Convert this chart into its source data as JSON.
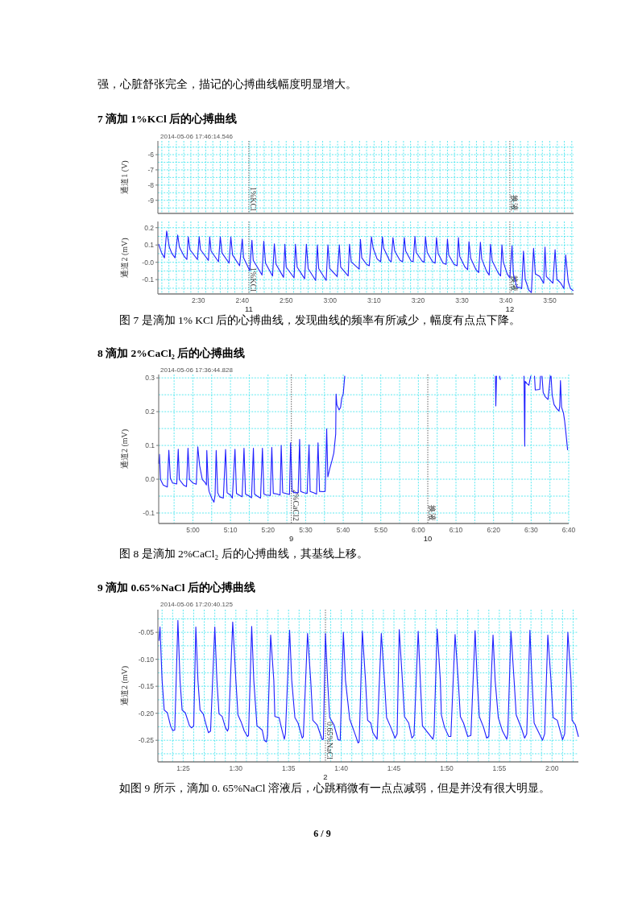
{
  "chart_data": [
    {
      "type": "line",
      "title": "7  滴加 1%KCl 后的心搏曲线",
      "subtitle": "2014-05-06 17:46:14.546",
      "ylabel": "通道1 (V)",
      "annotations": [
        "强，心脏舒张完全，描记的心搏曲线幅度明显增大。"
      ],
      "tick_labels": "y",
      "grid": true,
      "xlim": [
        140.8,
        235.4
      ],
      "ylim": [
        -9.86,
        -5.1
      ],
      "xticks": [
        {
          "value": 141.7,
          "label": null
        },
        {
          "value": 143.3,
          "label": null
        },
        {
          "value": 145,
          "label": null
        },
        {
          "value": 146.7,
          "label": null
        },
        {
          "value": 148.3,
          "label": null
        },
        {
          "value": 150,
          "label": null
        },
        {
          "value": 151.7,
          "label": null
        },
        {
          "value": 153.3,
          "label": null
        },
        {
          "value": 155,
          "label": null
        },
        {
          "value": 156.7,
          "label": null
        },
        {
          "value": 158.3,
          "label": null
        },
        {
          "value": 160,
          "label": null
        },
        {
          "value": 161.7,
          "label": null
        },
        {
          "value": 163.3,
          "label": null
        },
        {
          "value": 165,
          "label": null
        },
        {
          "value": 166.7,
          "label": null
        },
        {
          "value": 168.3,
          "label": null
        },
        {
          "value": 170,
          "label": null
        },
        {
          "value": 171.7,
          "label": null
        },
        {
          "value": 173.3,
          "label": null
        },
        {
          "value": 175,
          "label": null
        },
        {
          "value": 176.7,
          "label": null
        },
        {
          "value": 178.3,
          "label": null
        },
        {
          "value": 180,
          "label": null
        },
        {
          "value": 181.7,
          "label": null
        },
        {
          "value": 183.3,
          "label": null
        },
        {
          "value": 185,
          "label": null
        },
        {
          "value": 186.7,
          "label": null
        },
        {
          "value": 188.3,
          "label": null
        },
        {
          "value": 190,
          "label": null
        },
        {
          "value": 191.7,
          "label": null
        },
        {
          "value": 193.3,
          "label": null
        },
        {
          "value": 195,
          "label": null
        },
        {
          "value": 196.7,
          "label": null
        },
        {
          "value": 198.3,
          "label": null
        },
        {
          "value": 200,
          "label": null
        },
        {
          "value": 201.7,
          "label": null
        },
        {
          "value": 203.3,
          "label": null
        },
        {
          "value": 205,
          "label": null
        },
        {
          "value": 206.7,
          "label": null
        },
        {
          "value": 208.3,
          "label": null
        },
        {
          "value": 210,
          "label": null
        },
        {
          "value": 211.7,
          "label": null
        },
        {
          "value": 213.3,
          "label": null
        },
        {
          "value": 215,
          "label": null
        },
        {
          "value": 216.7,
          "label": null
        },
        {
          "value": 218.3,
          "label": null
        },
        {
          "value": 220,
          "label": null
        },
        {
          "value": 221.7,
          "label": null
        },
        {
          "value": 223.3,
          "label": null
        },
        {
          "value": 225,
          "label": null
        },
        {
          "value": 226.7,
          "label": null
        },
        {
          "value": 228.3,
          "label": null
        },
        {
          "value": 230,
          "label": null
        },
        {
          "value": 231.7,
          "label": null
        },
        {
          "value": 233.3,
          "label": null
        },
        {
          "value": 235,
          "label": null
        }
      ],
      "yticks": [
        {
          "value": -9.5,
          "label": null
        },
        -9,
        {
          "value": -8.5,
          "label": null
        },
        -8,
        {
          "value": -7.5,
          "label": null
        },
        -7,
        {
          "value": -6.5,
          "label": null
        },
        -6,
        {
          "value": -5.5,
          "label": null
        }
      ],
      "ref_lines": [
        {
          "axis": "x",
          "value": 161.5,
          "label": "1%KCl",
          "line_style": "dotted",
          "color": "#666666"
        },
        {
          "axis": "x",
          "value": 220.9,
          "label": "换液",
          "line_style": "dotted",
          "color": "#666666"
        }
      ]
    },
    {
      "type": "line",
      "ylabel": "通道2 (mV)",
      "annotations": [
        "11",
        "12",
        "图 7 是滴加 1% KCl 后的心搏曲线，发现曲线的频率有所减少，幅度有点点下降。"
      ],
      "grid": true,
      "xlim": [
        140.8,
        235.4
      ],
      "ylim": [
        -0.183,
        0.236
      ],
      "xticks": [
        {
          "value": 141.7,
          "label": null
        },
        {
          "value": 143.3,
          "label": null
        },
        {
          "value": 145,
          "label": null
        },
        {
          "value": 146.7,
          "label": null
        },
        {
          "value": 148.3,
          "label": null
        },
        {
          "value": 150,
          "label": "2:30"
        },
        {
          "value": 151.7,
          "label": null
        },
        {
          "value": 153.3,
          "label": null
        },
        {
          "value": 155,
          "label": null
        },
        {
          "value": 156.7,
          "label": null
        },
        {
          "value": 158.3,
          "label": null
        },
        {
          "value": 160,
          "label": "2:40"
        },
        {
          "value": 161.7,
          "label": null
        },
        {
          "value": 163.3,
          "label": null
        },
        {
          "value": 165,
          "label": null
        },
        {
          "value": 166.7,
          "label": null
        },
        {
          "value": 168.3,
          "label": null
        },
        {
          "value": 170,
          "label": "2:50"
        },
        {
          "value": 171.7,
          "label": null
        },
        {
          "value": 173.3,
          "label": null
        },
        {
          "value": 175,
          "label": null
        },
        {
          "value": 176.7,
          "label": null
        },
        {
          "value": 178.3,
          "label": null
        },
        {
          "value": 180,
          "label": "3:00"
        },
        {
          "value": 181.7,
          "label": null
        },
        {
          "value": 183.3,
          "label": null
        },
        {
          "value": 185,
          "label": null
        },
        {
          "value": 186.7,
          "label": null
        },
        {
          "value": 188.3,
          "label": null
        },
        {
          "value": 190,
          "label": "3:10"
        },
        {
          "value": 191.7,
          "label": null
        },
        {
          "value": 193.3,
          "label": null
        },
        {
          "value": 195,
          "label": null
        },
        {
          "value": 196.7,
          "label": null
        },
        {
          "value": 198.3,
          "label": null
        },
        {
          "value": 200,
          "label": "3:20"
        },
        {
          "value": 201.7,
          "label": null
        },
        {
          "value": 203.3,
          "label": null
        },
        {
          "value": 205,
          "label": null
        },
        {
          "value": 206.7,
          "label": null
        },
        {
          "value": 208.3,
          "label": null
        },
        {
          "value": 210,
          "label": "3:30"
        },
        {
          "value": 211.7,
          "label": null
        },
        {
          "value": 213.3,
          "label": null
        },
        {
          "value": 215,
          "label": null
        },
        {
          "value": 216.7,
          "label": null
        },
        {
          "value": 218.3,
          "label": null
        },
        {
          "value": 220,
          "label": "3:40"
        },
        {
          "value": 221.7,
          "label": null
        },
        {
          "value": 223.3,
          "label": null
        },
        {
          "value": 225,
          "label": null
        },
        {
          "value": 226.7,
          "label": null
        },
        {
          "value": 228.3,
          "label": null
        },
        {
          "value": 230,
          "label": "3:50"
        },
        {
          "value": 231.7,
          "label": null
        },
        {
          "value": 233.3,
          "label": null
        },
        {
          "value": 235,
          "label": null
        }
      ],
      "yticks": [
        {
          "value": -0.15,
          "label": null
        },
        -0.1,
        {
          "value": -0.05,
          "label": null
        },
        {
          "value": 0,
          "label": "-0.0"
        },
        {
          "value": 0.05,
          "label": null
        },
        0.1,
        {
          "value": 0.15,
          "label": null
        },
        0.2
      ],
      "ref_lines": [
        {
          "axis": "x",
          "value": 161.5,
          "label": "1%KCl",
          "line_style": "dotted",
          "color": "#666666"
        },
        {
          "axis": "x",
          "value": 220.9,
          "label": "换液",
          "line_style": "dotted",
          "color": "#666666"
        }
      ],
      "series": [
        {
          "color": "#1f1fff",
          "x": [
            141.0,
            141.6,
            142.3,
            142.8,
            143.1,
            143.4,
            144.0,
            144.7,
            145.3,
            145.7,
            146.8,
            147.4,
            147.7,
            148.1,
            149.8,
            150.2,
            150.5,
            152.3,
            152.6,
            152.9,
            154.6,
            155.0,
            155.4,
            157.0,
            157.4,
            157.8,
            159.4,
            160.0,
            160.3,
            161.7,
            162.2,
            162.5,
            164.5,
            164.9,
            165.3,
            166.9,
            167.3,
            167.7,
            169.4,
            169.7,
            170.0,
            171.8,
            172.1,
            172.5,
            174.2,
            174.6,
            175.0,
            176.7,
            177.1,
            177.4,
            179.1,
            179.5,
            179.9,
            181.6,
            182.1,
            182.4,
            184.1,
            184.4,
            184.8,
            186.6,
            186.9,
            187.2,
            188.3,
            188.9,
            189.4,
            189.8,
            190.7,
            191.5,
            191.9,
            192.2,
            193.5,
            193.9,
            194.3,
            194.7,
            195.9,
            196.5,
            196.9,
            197.2,
            198.4,
            198.9,
            199.3,
            199.6,
            200.9,
            201.4,
            201.7,
            202.1,
            203.3,
            203.9,
            204.2,
            204.6,
            205.7,
            206.4,
            206.7,
            207.0,
            208.2,
            208.9,
            209.2,
            209.5,
            210.7,
            211.3,
            211.6,
            212.0,
            213.2,
            213.8,
            214.2,
            214.5,
            215.6,
            216.2,
            216.5,
            216.9,
            218.2,
            218.8,
            219.1,
            219.4,
            220.3,
            220.9,
            221.4,
            221.7,
            222.5,
            223.4,
            223.6,
            224.0,
            224.4,
            225.2,
            225.8,
            226.3,
            226.7,
            227.7,
            228.6,
            228.9,
            229.2,
            229.8,
            230.7,
            231.2,
            231.6,
            232.5,
            233.2,
            233.6,
            234.2,
            234.7,
            235.3
          ],
          "values": [
            0.104,
            0.057,
            0.026,
            0.181,
            0.135,
            0.088,
            0.05,
            0.026,
            0.158,
            0.088,
            0.034,
            0.016,
            0.147,
            0.073,
            0.016,
            0.147,
            0.073,
            0.011,
            0.147,
            0.065,
            0.003,
            0.147,
            0.054,
            -0.005,
            0.146,
            0.042,
            -0.02,
            0.135,
            0.026,
            -0.048,
            0.127,
            0.011,
            -0.074,
            0.122,
            -0.005,
            -0.079,
            0.107,
            -0.012,
            -0.087,
            0.104,
            -0.028,
            -0.09,
            0.104,
            -0.028,
            -0.095,
            0.104,
            -0.036,
            -0.105,
            0.101,
            -0.036,
            -0.105,
            0.101,
            -0.036,
            -0.082,
            0.101,
            -0.028,
            -0.079,
            0.104,
            0.003,
            -0.039,
            0.132,
            0.026,
            -0.012,
            -0.02,
            0.147,
            0.081,
            0.019,
            0.003,
            0.147,
            0.081,
            0.011,
            0.003,
            0.143,
            0.065,
            0.011,
            0.003,
            0.143,
            0.065,
            0.008,
            0.003,
            0.15,
            0.057,
            0.008,
            0,
            0.147,
            0.057,
            0.003,
            -0.005,
            0.143,
            0.05,
            -0.005,
            -0.012,
            0.135,
            0.042,
            -0.012,
            -0.02,
            0.143,
            0.034,
            -0.028,
            -0.043,
            0.119,
            0.023,
            -0.043,
            -0.059,
            0.116,
            0.019,
            -0.051,
            -0.074,
            0.104,
            0.008,
            -0.059,
            -0.079,
            0.101,
            0.003,
            -0.067,
            -0.09,
            0.096,
            -0.067,
            -0.144,
            -0.147,
            -0.152,
            0.065,
            -0.098,
            -0.16,
            -0.175,
            0.081,
            -0.067,
            -0.082,
            -0.121,
            0.088,
            -0.082,
            -0.098,
            -0.121,
            0.073,
            -0.098,
            -0.121,
            -0.152,
            0.042,
            -0.113,
            -0.152,
            -0.163
          ]
        }
      ]
    },
    {
      "type": "line",
      "title": "8  滴加 2%CaCl₂ 后的心搏曲线",
      "subtitle": "2014-05-06 17:36:44.828",
      "ylabel": "通道2 (mV)",
      "annotations": [
        "9",
        "10",
        "图 8 是滴加 2%CaCl₂ 后的心搏曲线，其基线上移。"
      ],
      "grid": true,
      "xlim": [
        290.9,
        400
      ],
      "ylim": [
        -0.131,
        0.31
      ],
      "xticks": [
        {
          "value": 295,
          "label": null
        },
        {
          "value": 300,
          "label": "5:00"
        },
        {
          "value": 305,
          "label": null
        },
        {
          "value": 310,
          "label": "5:10"
        },
        {
          "value": 315,
          "label": null
        },
        {
          "value": 320,
          "label": "5:20"
        },
        {
          "value": 325,
          "label": null
        },
        {
          "value": 330,
          "label": "5:30"
        },
        {
          "value": 335,
          "label": null
        },
        {
          "value": 340,
          "label": "5:40"
        },
        {
          "value": 345,
          "label": null
        },
        {
          "value": 350,
          "label": "5:50"
        },
        {
          "value": 355,
          "label": null
        },
        {
          "value": 360,
          "label": "6:00"
        },
        {
          "value": 365,
          "label": null
        },
        {
          "value": 370,
          "label": "6:10"
        },
        {
          "value": 375,
          "label": null
        },
        {
          "value": 380,
          "label": "6:20"
        },
        {
          "value": 385,
          "label": null
        },
        {
          "value": 390,
          "label": "6:30"
        },
        {
          "value": 395,
          "label": null
        },
        {
          "value": 400,
          "label": "6:40"
        }
      ],
      "yticks": [
        -0.1,
        {
          "value": -0.05,
          "label": null
        },
        {
          "value": 0,
          "label": "0.0"
        },
        {
          "value": 0.05,
          "label": null
        },
        0.1,
        {
          "value": 0.15,
          "label": null
        },
        0.2,
        {
          "value": 0.25,
          "label": null
        },
        0.3
      ],
      "ref_lines": [
        {
          "axis": "x",
          "value": 326.2,
          "label": "2%CaCl2",
          "line_style": "dotted",
          "color": "#666666"
        },
        {
          "axis": "x",
          "value": 362.5,
          "label": "换液",
          "line_style": "dotted",
          "color": "#666666"
        }
      ],
      "series": [
        {
          "color": "#1f1fff",
          "x": [
            290.9,
            291.1,
            291.4,
            292.1,
            293.2,
            293.6,
            294.0,
            294.6,
            295.7,
            296.1,
            296.4,
            297.5,
            298.3,
            298.7,
            299.1,
            300.0,
            300.9,
            301.3,
            301.8,
            302.5,
            303.2,
            303.6,
            303.7,
            304.1,
            304.3,
            305.0,
            305.6,
            305.9,
            306.2,
            306.6,
            307.1,
            308.1,
            308.7,
            309.1,
            310.0,
            310.5,
            311.2,
            311.6,
            312.5,
            313.1,
            313.6,
            314.0,
            315.0,
            315.6,
            316.1,
            316.4,
            317.1,
            318.0,
            318.5,
            318.9,
            319.6,
            320.6,
            321.0,
            321.4,
            322.5,
            323.2,
            323.5,
            323.9,
            325.0,
            325.7,
            326.0,
            326.4,
            327.1,
            328.0,
            328.4,
            328.7,
            329.5,
            330.4,
            330.9,
            331.2,
            332.1,
            332.9,
            333.3,
            333.7,
            334.6,
            335.2,
            335.6,
            335.9,
            336.4,
            337.0,
            337.5,
            338.0,
            338.1,
            338.3,
            338.9,
            339.3,
            339.6,
            340.0,
            340.4,
            360,
            380.5,
            380.6,
            380.8,
            381.2,
            381.6,
            381.8,
            385,
            388.1,
            388.3,
            388.4,
            388.9,
            389.4,
            389.6,
            389.9,
            390.4,
            390.9,
            391.1,
            392.3,
            392.5,
            392.7,
            392.9,
            393.2,
            393.7,
            394.5,
            394.8,
            395.1,
            395.2,
            395.3,
            395.6,
            396.1,
            396.8,
            397.4,
            397.6,
            397.8,
            398.1,
            398.6,
            398.9,
            399.3,
            399.7
          ],
          "values": [
            0.047,
            0.074,
            -0.001,
            -0.017,
            -0.023,
            0.086,
            0.003,
            -0.011,
            -0.014,
            0.089,
            -0.001,
            -0.017,
            -0.022,
            0.092,
            -0.001,
            -0.011,
            -0.015,
            0.096,
            0.04,
            -0.001,
            -0.009,
            -0.017,
            0.085,
            -0.017,
            -0.036,
            -0.056,
            -0.068,
            -0.048,
            0.085,
            -0.04,
            -0.052,
            -0.056,
            0.088,
            -0.04,
            -0.047,
            -0.056,
            0.089,
            -0.042,
            -0.048,
            -0.052,
            0.092,
            -0.044,
            -0.05,
            -0.055,
            0.092,
            -0.044,
            -0.05,
            -0.056,
            0.092,
            -0.044,
            -0.047,
            -0.048,
            0.094,
            -0.042,
            -0.044,
            -0.047,
            0.1,
            -0.04,
            -0.043,
            -0.045,
            0.108,
            -0.036,
            -0.04,
            -0.04,
            0.118,
            -0.036,
            -0.04,
            -0.042,
            0.102,
            -0.036,
            -0.04,
            -0.044,
            0.108,
            -0.036,
            -0.037,
            -0.036,
            0.149,
            0.007,
            0.03,
            0.055,
            0.078,
            0.134,
            0.252,
            0.221,
            0.205,
            0.213,
            0.24,
            0.252,
            0.305,
            null,
            0.305,
            0.217,
            0.305,
            null,
            0.305,
            0.295,
            null,
            0.305,
            0.098,
            0.29,
            0.283,
            0.278,
            0.29,
            0.305,
            null,
            0.305,
            0.264,
            0.266,
            0.305,
            null,
            0.305,
            0.257,
            0.245,
            0.236,
            0.27,
            0.305,
            null,
            0.305,
            0.249,
            0.221,
            0.209,
            0.202,
            0.215,
            0.292,
            0.213,
            0.196,
            0.174,
            0.132,
            0.087
          ]
        }
      ]
    },
    {
      "type": "line",
      "title": "9  滴加 0.65%NaCl 后的心搏曲线",
      "subtitle": "2014-05-06 17:20:40.125",
      "ylabel": "通道2 (mV)",
      "annotations": [
        "2",
        "如图 9 所示，滴加 0. 65%NaCl 溶液后，心跳稍微有一点点减弱，但是并没有很大明显。",
        "6 / 9"
      ],
      "grid": true,
      "xlim": [
        82.6,
        122.5
      ],
      "ylim": [
        -0.29,
        -0.008
      ],
      "xticks": [
        {
          "value": 83,
          "label": null
        },
        {
          "value": 84,
          "label": null
        },
        {
          "value": 85,
          "label": "1:25"
        },
        {
          "value": 86,
          "label": null
        },
        {
          "value": 87,
          "label": null
        },
        {
          "value": 88,
          "label": null
        },
        {
          "value": 89,
          "label": null
        },
        {
          "value": 90,
          "label": "1:30"
        },
        {
          "value": 91,
          "label": null
        },
        {
          "value": 92,
          "label": null
        },
        {
          "value": 93,
          "label": null
        },
        {
          "value": 94,
          "label": null
        },
        {
          "value": 95,
          "label": "1:35"
        },
        {
          "value": 96,
          "label": null
        },
        {
          "value": 97,
          "label": null
        },
        {
          "value": 98,
          "label": null
        },
        {
          "value": 99,
          "label": null
        },
        {
          "value": 100,
          "label": "1:40"
        },
        {
          "value": 101,
          "label": null
        },
        {
          "value": 102,
          "label": null
        },
        {
          "value": 103,
          "label": null
        },
        {
          "value": 104,
          "label": null
        },
        {
          "value": 105,
          "label": "1:45"
        },
        {
          "value": 106,
          "label": null
        },
        {
          "value": 107,
          "label": null
        },
        {
          "value": 108,
          "label": null
        },
        {
          "value": 109,
          "label": null
        },
        {
          "value": 110,
          "label": "1:50"
        },
        {
          "value": 111,
          "label": null
        },
        {
          "value": 112,
          "label": null
        },
        {
          "value": 113,
          "label": null
        },
        {
          "value": 114,
          "label": null
        },
        {
          "value": 115,
          "label": "1:55"
        },
        {
          "value": 116,
          "label": null
        },
        {
          "value": 117,
          "label": null
        },
        {
          "value": 118,
          "label": null
        },
        {
          "value": 119,
          "label": null
        },
        {
          "value": 120,
          "label": "2:00"
        },
        {
          "value": 121,
          "label": null
        },
        {
          "value": 122,
          "label": null
        }
      ],
      "yticks": [
        {
          "value": -0.275,
          "label": null
        },
        -0.25,
        {
          "value": -0.225,
          "label": null
        },
        {
          "value": -0.2,
          "label": "-0.20"
        },
        {
          "value": -0.175,
          "label": null
        },
        -0.15,
        {
          "value": -0.125,
          "label": null
        },
        {
          "value": -0.1,
          "label": "-0.10"
        },
        {
          "value": -0.075,
          "label": null
        },
        -0.05,
        {
          "value": -0.025,
          "label": null
        }
      ],
      "ref_lines": [
        {
          "axis": "x",
          "value": 98.5,
          "label": "0.65%NaCl",
          "line_style": "dotted",
          "color": "#666666"
        }
      ],
      "series": [
        {
          "color": "#1f1fff",
          "x": [
            82.7,
            82.8,
            83.0,
            83.2,
            83.5,
            83.8,
            84.0,
            84.2,
            84.5,
            84.7,
            84.9,
            85.2,
            85.6,
            85.8,
            86.0,
            86.2,
            86.4,
            86.6,
            86.9,
            87.2,
            87.4,
            87.6,
            88.0,
            88.2,
            88.4,
            88.7,
            89.0,
            89.2,
            89.3,
            89.7,
            90.0,
            90.2,
            90.5,
            90.8,
            91.1,
            91.2,
            91.5,
            91.7,
            92.0,
            92.5,
            92.7,
            92.9,
            93.0,
            93.3,
            93.6,
            93.7,
            94.1,
            94.4,
            94.6,
            94.7,
            95.1,
            95.3,
            95.6,
            95.9,
            96.3,
            96.4,
            96.8,
            97.1,
            97.3,
            97.7,
            98.2,
            98.3,
            98.5,
            98.7,
            98.9,
            99.3,
            99.7,
            99.9,
            100.2,
            100.4,
            100.8,
            101.3,
            101.6,
            101.7,
            102.0,
            102.3,
            102.5,
            102.8,
            103.0,
            103.4,
            103.8,
            104.1,
            104.3,
            104.7,
            105.1,
            105.3,
            105.5,
            105.8,
            106.0,
            106.4,
            106.7,
            106.9,
            107.3,
            107.5,
            107.7,
            108.1,
            108.7,
            108.8,
            109.1,
            109.4,
            109.5,
            109.8,
            110.2,
            110.4,
            110.8,
            111.1,
            111.3,
            111.6,
            112.0,
            112.3,
            112.7,
            112.9,
            113.1,
            113.5,
            113.8,
            114.0,
            114.4,
            114.6,
            114.9,
            115.3,
            115.7,
            115.8,
            116.1,
            116.4,
            116.6,
            117.1,
            117.4,
            117.6,
            117.9,
            118.1,
            118.3,
            118.8,
            119.1,
            119.3,
            119.6,
            119.9,
            120.1,
            120.5,
            121.0,
            121.2,
            121.5,
            121.8,
            121.9,
            122.2,
            122.5
          ],
          "values": [
            -0.065,
            -0.04,
            -0.139,
            -0.194,
            -0.199,
            -0.223,
            -0.232,
            -0.231,
            -0.028,
            -0.139,
            -0.194,
            -0.199,
            -0.223,
            -0.227,
            -0.223,
            -0.04,
            -0.139,
            -0.194,
            -0.201,
            -0.223,
            -0.236,
            -0.233,
            -0.04,
            -0.139,
            -0.201,
            -0.206,
            -0.226,
            -0.233,
            -0.228,
            -0.031,
            -0.139,
            -0.203,
            -0.216,
            -0.233,
            -0.243,
            -0.241,
            -0.039,
            -0.139,
            -0.223,
            -0.231,
            -0.25,
            -0.253,
            -0.241,
            -0.055,
            -0.139,
            -0.206,
            -0.208,
            -0.233,
            -0.248,
            -0.238,
            -0.046,
            -0.139,
            -0.208,
            -0.218,
            -0.246,
            -0.243,
            -0.052,
            -0.139,
            -0.213,
            -0.221,
            -0.249,
            -0.248,
            -0.052,
            -0.139,
            -0.208,
            -0.221,
            -0.249,
            -0.25,
            -0.05,
            -0.139,
            -0.211,
            -0.238,
            -0.255,
            -0.253,
            -0.048,
            -0.139,
            -0.213,
            -0.218,
            -0.236,
            -0.248,
            -0.052,
            -0.139,
            -0.208,
            -0.226,
            -0.246,
            -0.238,
            -0.045,
            -0.139,
            -0.206,
            -0.218,
            -0.246,
            -0.241,
            -0.048,
            -0.139,
            -0.223,
            -0.233,
            -0.248,
            -0.238,
            -0.044,
            -0.139,
            -0.203,
            -0.226,
            -0.243,
            -0.243,
            -0.054,
            -0.139,
            -0.206,
            -0.218,
            -0.243,
            -0.241,
            -0.047,
            -0.139,
            -0.206,
            -0.226,
            -0.246,
            -0.243,
            -0.055,
            -0.139,
            -0.208,
            -0.233,
            -0.248,
            -0.238,
            -0.048,
            -0.139,
            -0.203,
            -0.228,
            -0.246,
            -0.238,
            -0.046,
            -0.139,
            -0.218,
            -0.238,
            -0.25,
            -0.238,
            -0.055,
            -0.139,
            -0.208,
            -0.213,
            -0.249,
            -0.238,
            -0.05,
            -0.139,
            -0.213,
            -0.221,
            -0.243
          ]
        }
      ]
    }
  ]
}
